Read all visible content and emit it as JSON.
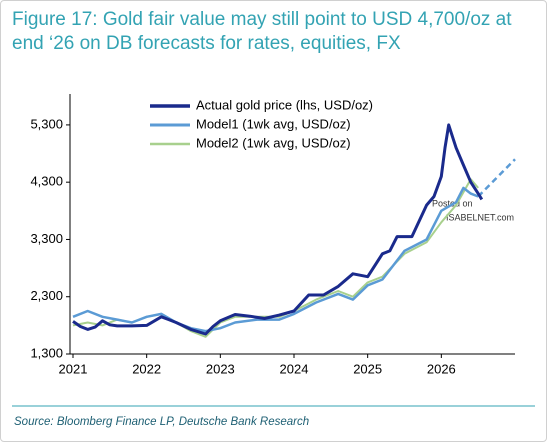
{
  "chart_data": {
    "type": "line",
    "title": "Figure 17: Gold fair value may still point to USD 4,700/oz at end ‘26 on DB forecasts for rates, equities, FX",
    "source": "Source: Bloomberg Finance LP, Deutsche Bank Research",
    "annotations": [
      "Posted on",
      "ISABELNET.com"
    ],
    "xlim": [
      2021,
      2027
    ],
    "xticks": [
      2021,
      2022,
      2023,
      2024,
      2025,
      2026
    ],
    "ylim": [
      1300,
      5700
    ],
    "yticks": [
      {
        "value": 1300,
        "label": "1,300"
      },
      {
        "value": 2300,
        "label": "2,300"
      },
      {
        "value": 3300,
        "label": "3,300"
      },
      {
        "value": 4300,
        "label": "4,300"
      },
      {
        "value": 5300,
        "label": "5,300"
      }
    ],
    "legend": "upper left",
    "series": [
      {
        "name": "Actual gold price (lhs, USD/oz)",
        "color": "#1a2a8c",
        "width": 3,
        "x": [
          2021.0,
          2021.1,
          2021.2,
          2021.3,
          2021.4,
          2021.5,
          2021.6,
          2021.8,
          2022.0,
          2022.2,
          2022.3,
          2022.4,
          2022.6,
          2022.8,
          2022.9,
          2023.0,
          2023.2,
          2023.4,
          2023.6,
          2023.8,
          2024.0,
          2024.2,
          2024.4,
          2024.6,
          2024.8,
          2025.0,
          2025.2,
          2025.3,
          2025.4,
          2025.6,
          2025.8,
          2025.9,
          2026.0,
          2026.05,
          2026.1,
          2026.15,
          2026.2,
          2026.3,
          2026.4,
          2026.5,
          2026.55
        ],
        "values": [
          1870,
          1780,
          1730,
          1770,
          1880,
          1810,
          1790,
          1790,
          1800,
          1950,
          1900,
          1850,
          1730,
          1650,
          1780,
          1880,
          1990,
          1960,
          1920,
          1980,
          2050,
          2330,
          2330,
          2480,
          2700,
          2650,
          3050,
          3100,
          3350,
          3350,
          3900,
          4050,
          4400,
          4900,
          5300,
          5100,
          4900,
          4600,
          4300,
          4100,
          4000
        ]
      },
      {
        "name": "Model1 (1wk avg, USD/oz)",
        "color": "#5b9bd5",
        "width": 2.5,
        "x": [
          2021.0,
          2021.2,
          2021.4,
          2021.6,
          2021.8,
          2022.0,
          2022.2,
          2022.4,
          2022.6,
          2022.8,
          2023.0,
          2023.2,
          2023.5,
          2023.8,
          2024.0,
          2024.3,
          2024.6,
          2024.8,
          2025.0,
          2025.2,
          2025.5,
          2025.8,
          2026.0,
          2026.2,
          2026.3,
          2026.4,
          2026.5
        ],
        "values": [
          1950,
          2050,
          1950,
          1900,
          1850,
          1950,
          2000,
          1850,
          1750,
          1700,
          1750,
          1850,
          1900,
          1900,
          2000,
          2200,
          2350,
          2250,
          2500,
          2600,
          3100,
          3300,
          3800,
          3950,
          4200,
          4100,
          4050
        ]
      },
      {
        "color": "#5b9bd5",
        "width": 2.5,
        "dash": true,
        "x": [
          2026.5,
          2027.0
        ],
        "values": [
          4050,
          4700
        ]
      },
      {
        "name": "Model2 (1wk avg, USD/oz)",
        "color": "#a8d08d",
        "width": 2,
        "x": [
          2021.0,
          2021.2,
          2021.4,
          2021.6,
          2021.8,
          2022.0,
          2022.2,
          2022.4,
          2022.6,
          2022.8,
          2023.0,
          2023.2,
          2023.5,
          2023.8,
          2024.0,
          2024.3,
          2024.6,
          2024.8,
          2025.0,
          2025.2,
          2025.5,
          2025.8,
          2026.0,
          2026.2,
          2026.4,
          2026.5
        ],
        "values": [
          1800,
          1850,
          1800,
          1900,
          1850,
          1950,
          2000,
          1850,
          1700,
          1600,
          1850,
          1950,
          1950,
          1950,
          2050,
          2250,
          2400,
          2300,
          2550,
          2650,
          3050,
          3250,
          3600,
          3900,
          4350,
          4200
        ]
      }
    ]
  }
}
